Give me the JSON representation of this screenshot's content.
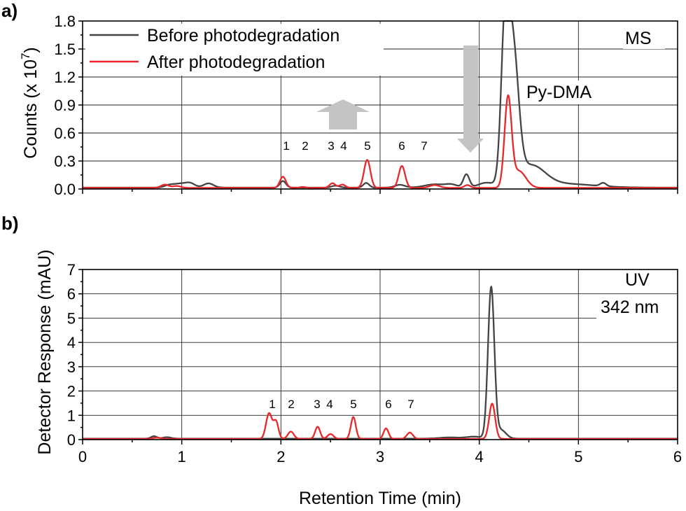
{
  "chart_data": [
    {
      "panel_label": "a)",
      "type": "line",
      "title": "",
      "xlabel": "",
      "ylabel": "Counts (x 10 7 )",
      "ylabel_main": "Counts (x 10",
      "ylabel_exp": "7",
      "ylabel_close": ")",
      "xlim": [
        0,
        6
      ],
      "ylim": [
        0,
        1.8
      ],
      "x_ticks": [],
      "y_ticks": [
        0.0,
        0.3,
        0.6,
        0.9,
        1.2,
        1.5,
        1.8
      ],
      "y_tick_labels": [
        "0.0",
        "0.3",
        "0.6",
        "0.9",
        "1.2",
        "1.5",
        "1.8"
      ],
      "grid": true,
      "legend": "top-left",
      "annotations": [
        "MS",
        "Py-DMA"
      ],
      "peak_labels": [
        "1",
        "2",
        "3",
        "4",
        "5",
        "6",
        "7"
      ],
      "series": [
        {
          "name": "Before photodegradation",
          "color": "#444444",
          "baseline": 0.015,
          "peaks": [
            {
              "x": 0.88,
              "h": 0.03,
              "w": 0.05
            },
            {
              "x": 0.98,
              "h": 0.035,
              "w": 0.05
            },
            {
              "x": 1.08,
              "h": 0.05,
              "w": 0.05
            },
            {
              "x": 1.27,
              "h": 0.045,
              "w": 0.05
            },
            {
              "x": 2.02,
              "h": 0.07,
              "w": 0.03
            },
            {
              "x": 2.55,
              "h": 0.02,
              "w": 0.04
            },
            {
              "x": 2.86,
              "h": 0.05,
              "w": 0.03
            },
            {
              "x": 3.2,
              "h": 0.03,
              "w": 0.05
            },
            {
              "x": 3.55,
              "h": 0.035,
              "w": 0.1
            },
            {
              "x": 3.72,
              "h": 0.03,
              "w": 0.06
            },
            {
              "x": 3.87,
              "h": 0.14,
              "w": 0.03
            },
            {
              "x": 4.07,
              "h": 0.05,
              "w": 0.08
            },
            {
              "x": 4.26,
              "h": 1.55,
              "w": 0.04
            },
            {
              "x": 4.34,
              "h": 1.4,
              "w": 0.055
            },
            {
              "x": 4.52,
              "h": 0.22,
              "w": 0.14
            },
            {
              "x": 4.85,
              "h": 0.04,
              "w": 0.3
            },
            {
              "x": 5.25,
              "h": 0.035,
              "w": 0.03
            }
          ]
        },
        {
          "name": "After photodegradation",
          "color": "#e8282b",
          "baseline": 0.012,
          "peaks": [
            {
              "x": 0.83,
              "h": 0.035,
              "w": 0.04
            },
            {
              "x": 0.95,
              "h": 0.02,
              "w": 0.04
            },
            {
              "x": 2.02,
              "h": 0.12,
              "w": 0.03
            },
            {
              "x": 2.22,
              "h": 0.01,
              "w": 0.03
            },
            {
              "x": 2.52,
              "h": 0.05,
              "w": 0.03
            },
            {
              "x": 2.62,
              "h": 0.035,
              "w": 0.03
            },
            {
              "x": 2.87,
              "h": 0.3,
              "w": 0.032
            },
            {
              "x": 3.22,
              "h": 0.235,
              "w": 0.032
            },
            {
              "x": 3.55,
              "h": 0.03,
              "w": 0.05
            },
            {
              "x": 3.88,
              "h": 0.03,
              "w": 0.03
            },
            {
              "x": 4.29,
              "h": 0.94,
              "w": 0.035
            },
            {
              "x": 4.4,
              "h": 0.18,
              "w": 0.07
            }
          ]
        }
      ]
    },
    {
      "panel_label": "b)",
      "type": "line",
      "title": "",
      "xlabel": "Retention Time (min)",
      "ylabel": "Detector Response (mAU)",
      "xlim": [
        0,
        6
      ],
      "ylim": [
        0,
        7
      ],
      "x_ticks": [
        0,
        1,
        2,
        3,
        4,
        5,
        6
      ],
      "x_tick_labels": [
        "0",
        "1",
        "2",
        "3",
        "4",
        "5",
        "6"
      ],
      "y_ticks": [
        0,
        1,
        2,
        3,
        4,
        5,
        6,
        7
      ],
      "y_tick_labels": [
        "0",
        "1",
        "2",
        "3",
        "4",
        "5",
        "6",
        "7"
      ],
      "grid": true,
      "annotations": [
        "UV",
        "342 nm"
      ],
      "peak_labels": [
        "1",
        "2",
        "3",
        "4",
        "5",
        "6",
        "7"
      ],
      "series": [
        {
          "name": "Before photodegradation",
          "color": "#444444",
          "baseline": 0.04,
          "peaks": [
            {
              "x": 0.72,
              "h": 0.1,
              "w": 0.03
            },
            {
              "x": 0.85,
              "h": 0.06,
              "w": 0.04
            },
            {
              "x": 3.7,
              "h": 0.05,
              "w": 0.1
            },
            {
              "x": 3.95,
              "h": 0.08,
              "w": 0.08
            },
            {
              "x": 4.12,
              "h": 6.2,
              "w": 0.032
            },
            {
              "x": 4.22,
              "h": 0.35,
              "w": 0.05
            }
          ]
        },
        {
          "name": "After photodegradation",
          "color": "#e8282b",
          "baseline": 0.03,
          "peaks": [
            {
              "x": 0.75,
              "h": 0.05,
              "w": 0.04
            },
            {
              "x": 1.88,
              "h": 1.05,
              "w": 0.03
            },
            {
              "x": 1.95,
              "h": 0.7,
              "w": 0.025
            },
            {
              "x": 2.1,
              "h": 0.3,
              "w": 0.03
            },
            {
              "x": 2.37,
              "h": 0.5,
              "w": 0.025
            },
            {
              "x": 2.5,
              "h": 0.2,
              "w": 0.03
            },
            {
              "x": 2.73,
              "h": 0.9,
              "w": 0.025
            },
            {
              "x": 3.06,
              "h": 0.43,
              "w": 0.025
            },
            {
              "x": 3.3,
              "h": 0.26,
              "w": 0.03
            },
            {
              "x": 4.13,
              "h": 1.45,
              "w": 0.03
            }
          ]
        }
      ]
    }
  ]
}
